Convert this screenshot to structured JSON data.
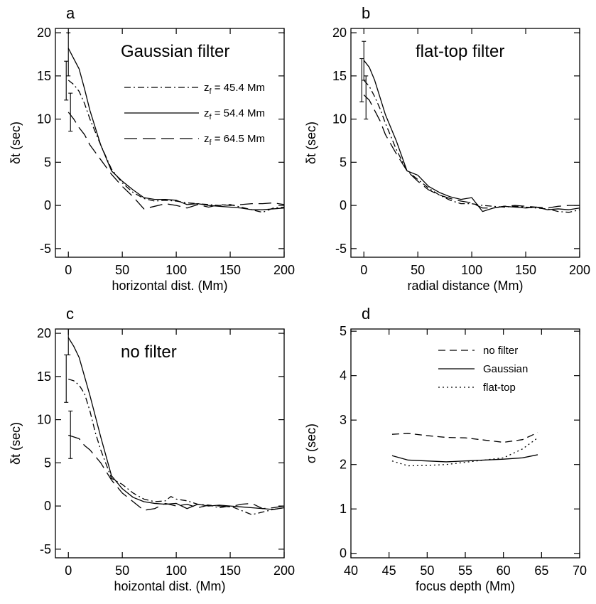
{
  "chart_data": [
    {
      "type": "line",
      "panel_label": "a",
      "title": "Gaussian filter",
      "xlabel": "horizontal dist. (Mm)",
      "ylabel": "δt (sec)",
      "xlim": [
        -12,
        200
      ],
      "ylim": [
        -6,
        20.5
      ],
      "xticks": [
        0,
        50,
        100,
        150,
        200
      ],
      "yticks": [
        -5,
        0,
        5,
        10,
        15,
        20
      ],
      "legend_position": "top-right",
      "series": [
        {
          "name": "z_f = 45.4 Mm",
          "style": "dashdot",
          "x": [
            0,
            5,
            10,
            15,
            20,
            30,
            40,
            50,
            60,
            70,
            80,
            90,
            100,
            110,
            120,
            130,
            140,
            150,
            160,
            170,
            180,
            190,
            200
          ],
          "y": [
            14.5,
            14.0,
            13.2,
            11.8,
            10.0,
            7.0,
            4.2,
            2.6,
            1.5,
            0.8,
            0.5,
            0.6,
            0.5,
            0.3,
            0.2,
            0.1,
            0.0,
            0.1,
            -0.2,
            -0.5,
            -0.8,
            -0.3,
            -0.2
          ],
          "error_bar": {
            "x": 0,
            "low": 12.2,
            "high": 16.7
          }
        },
        {
          "name": "z_f = 54.4 Mm",
          "style": "solid",
          "x": [
            0,
            5,
            10,
            15,
            20,
            30,
            40,
            50,
            60,
            70,
            80,
            90,
            100,
            110,
            120,
            130,
            140,
            150,
            160,
            170,
            180,
            190,
            200
          ],
          "y": [
            18.2,
            17.0,
            15.8,
            13.5,
            11.0,
            7.0,
            4.0,
            2.8,
            1.8,
            0.9,
            0.7,
            0.7,
            0.6,
            0.1,
            0.2,
            0.0,
            -0.1,
            -0.2,
            -0.3,
            -0.5,
            -0.5,
            -0.4,
            -0.3
          ],
          "error_bar": {
            "x": 0,
            "low": 15.0,
            "high": 20.0
          }
        },
        {
          "name": "z_f = 64.5 Mm",
          "style": "longdash",
          "x": [
            0,
            5,
            10,
            15,
            20,
            30,
            40,
            50,
            60,
            70,
            80,
            90,
            100,
            110,
            120,
            130,
            140,
            150,
            160,
            170,
            180,
            190,
            200
          ],
          "y": [
            10.8,
            10.0,
            9.0,
            8.2,
            7.0,
            5.3,
            3.6,
            2.2,
            1.0,
            -0.4,
            -0.1,
            0.2,
            0.0,
            -0.3,
            0.1,
            -0.2,
            0.1,
            0.0,
            0.1,
            0.2,
            0.2,
            0.3,
            0.1
          ],
          "error_bar": {
            "x": 0,
            "low": 8.6,
            "high": 13.0
          }
        }
      ]
    },
    {
      "type": "line",
      "panel_label": "b",
      "title": "flat-top filter",
      "xlabel": "radial distance (Mm)",
      "ylabel": "δt (sec)",
      "xlim": [
        -12,
        200
      ],
      "ylim": [
        -6,
        20.5
      ],
      "xticks": [
        0,
        50,
        100,
        150,
        200
      ],
      "yticks": [
        -5,
        0,
        5,
        10,
        15,
        20
      ],
      "series": [
        {
          "name": "z_f = 45.4 Mm",
          "style": "dashdot",
          "x": [
            0,
            5,
            10,
            15,
            20,
            30,
            40,
            50,
            60,
            70,
            80,
            90,
            100,
            110,
            120,
            130,
            140,
            150,
            160,
            170,
            180,
            190,
            200
          ],
          "y": [
            14.5,
            13.8,
            12.6,
            11.2,
            9.5,
            6.5,
            4.0,
            3.0,
            2.0,
            1.2,
            0.6,
            0.2,
            0.2,
            0.0,
            -0.1,
            -0.2,
            -0.1,
            -0.2,
            -0.3,
            -0.4,
            -0.7,
            -0.8,
            -0.5
          ],
          "error_bar": {
            "x": 0,
            "low": 12.0,
            "high": 17.0
          }
        },
        {
          "name": "z_f = 54.4 Mm",
          "style": "solid",
          "x": [
            0,
            5,
            10,
            15,
            20,
            30,
            40,
            50,
            60,
            70,
            80,
            90,
            100,
            110,
            120,
            130,
            140,
            150,
            160,
            170,
            180,
            190,
            200
          ],
          "y": [
            16.8,
            16.0,
            14.5,
            12.5,
            10.5,
            7.5,
            4.0,
            3.5,
            2.2,
            1.5,
            1.0,
            0.7,
            0.9,
            -0.7,
            -0.3,
            -0.1,
            -0.2,
            -0.3,
            -0.2,
            -0.5,
            -0.4,
            -0.5,
            -0.3
          ],
          "error_bar": {
            "x": 0,
            "low": 14.5,
            "high": 19.0
          }
        },
        {
          "name": "z_f = 64.5 Mm",
          "style": "longdash",
          "x": [
            0,
            5,
            10,
            15,
            20,
            30,
            40,
            50,
            60,
            70,
            80,
            90,
            100,
            110,
            120,
            130,
            140,
            150,
            160,
            170,
            180,
            190,
            200
          ],
          "y": [
            12.8,
            12.2,
            11.0,
            9.8,
            8.2,
            6.0,
            4.0,
            2.8,
            1.8,
            1.2,
            0.8,
            0.5,
            0.3,
            -0.3,
            -0.3,
            -0.1,
            0.0,
            -0.1,
            -0.2,
            -0.3,
            -0.1,
            0.0,
            0.0
          ],
          "error_bar": {
            "x": 0,
            "low": 10.0,
            "high": 15.0
          }
        }
      ]
    },
    {
      "type": "line",
      "panel_label": "c",
      "title": "no filter",
      "xlabel": "hoizontal dist. (Mm)",
      "ylabel": "δt (sec)",
      "xlim": [
        -12,
        200
      ],
      "ylim": [
        -6,
        20.5
      ],
      "xticks": [
        0,
        50,
        100,
        150,
        200
      ],
      "yticks": [
        -5,
        0,
        5,
        10,
        15,
        20
      ],
      "series": [
        {
          "name": "z_f = 45.4 Mm",
          "style": "dashdot",
          "x": [
            0,
            5,
            10,
            15,
            20,
            25,
            30,
            40,
            50,
            60,
            70,
            80,
            90,
            95,
            100,
            110,
            120,
            130,
            140,
            150,
            160,
            170,
            180,
            190,
            200
          ],
          "y": [
            14.7,
            14.5,
            14.0,
            13.0,
            11.0,
            8.5,
            6.5,
            3.2,
            2.5,
            1.5,
            0.8,
            0.5,
            0.6,
            1.1,
            0.8,
            0.6,
            0.2,
            0.1,
            -0.2,
            0.0,
            -0.5,
            -1.0,
            -0.7,
            -0.4,
            -0.2
          ],
          "error_bar": {
            "x": 0,
            "low": 12.0,
            "high": 17.5
          }
        },
        {
          "name": "z_f = 54.4 Mm",
          "style": "solid",
          "x": [
            0,
            5,
            10,
            15,
            20,
            30,
            40,
            50,
            60,
            70,
            80,
            90,
            100,
            110,
            120,
            130,
            140,
            150,
            160,
            170,
            180,
            190,
            200
          ],
          "y": [
            19.5,
            18.5,
            17.2,
            15.0,
            12.8,
            8.0,
            3.5,
            2.0,
            1.0,
            0.5,
            0.3,
            0.2,
            0.3,
            -0.3,
            0.2,
            0.0,
            0.1,
            0.0,
            -0.1,
            -0.2,
            -0.3,
            -0.4,
            -0.2
          ],
          "error_bar": {
            "x": 0,
            "low": 17.5,
            "high": 21.5
          }
        },
        {
          "name": "z_f = 64.5 Mm",
          "style": "longdash",
          "x": [
            0,
            5,
            10,
            15,
            20,
            30,
            40,
            50,
            60,
            70,
            80,
            90,
            100,
            110,
            120,
            130,
            140,
            150,
            160,
            170,
            180,
            190,
            200
          ],
          "y": [
            8.2,
            8.0,
            7.8,
            7.0,
            6.5,
            5.0,
            3.0,
            1.5,
            0.5,
            -0.5,
            -0.3,
            0.3,
            0.0,
            0.2,
            -0.2,
            0.1,
            0.0,
            -0.1,
            0.2,
            0.3,
            -0.3,
            -0.2,
            0.0
          ],
          "error_bar": {
            "x": 0,
            "low": 5.5,
            "high": 11.0
          }
        }
      ]
    },
    {
      "type": "line",
      "panel_label": "d",
      "title": "",
      "xlabel": "focus depth (Mm)",
      "ylabel": "σ (sec)",
      "xlim": [
        40,
        70
      ],
      "ylim": [
        -0.1,
        5.05
      ],
      "xticks": [
        40,
        45,
        50,
        55,
        60,
        65,
        70
      ],
      "yticks": [
        0,
        1,
        2,
        3,
        4,
        5
      ],
      "legend_position": "top-right",
      "series": [
        {
          "name": "no filter",
          "style": "dashed",
          "x": [
            45.4,
            47.5,
            50.0,
            52.5,
            55.0,
            57.5,
            60.0,
            62.5,
            64.5
          ],
          "y": [
            2.68,
            2.7,
            2.65,
            2.61,
            2.6,
            2.55,
            2.5,
            2.56,
            2.72
          ]
        },
        {
          "name": "Gaussian",
          "style": "solid",
          "x": [
            45.4,
            47.5,
            50.0,
            52.5,
            55.0,
            57.5,
            60.0,
            62.5,
            64.5
          ],
          "y": [
            2.2,
            2.1,
            2.08,
            2.06,
            2.08,
            2.1,
            2.12,
            2.15,
            2.22
          ]
        },
        {
          "name": "flat-top",
          "style": "dotted",
          "x": [
            45.4,
            47.5,
            50.0,
            52.5,
            55.0,
            57.5,
            60.0,
            62.5,
            64.5
          ],
          "y": [
            2.08,
            1.97,
            1.98,
            2.0,
            2.05,
            2.1,
            2.15,
            2.35,
            2.6
          ]
        }
      ]
    }
  ]
}
